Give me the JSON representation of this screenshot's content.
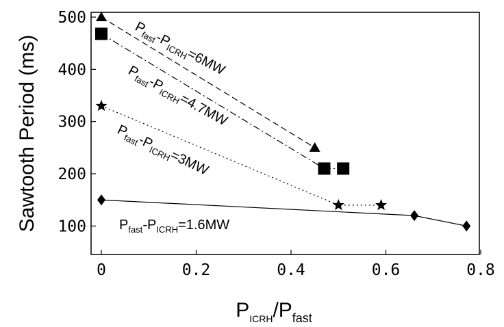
{
  "chart_data": {
    "type": "scatter",
    "xlabel": {
      "main": "P",
      "sub1": "ICRH",
      "mid": "/P",
      "sub2": "fast"
    },
    "ylabel": "Sawtooth Period (ms)",
    "xlim": [
      0,
      0.8
    ],
    "ylim": [
      60,
      510
    ],
    "x_ticks": [
      "0",
      "0.2",
      "0.4",
      "0.6",
      "0.8"
    ],
    "x_tick_values": [
      0,
      0.2,
      0.4,
      0.6,
      0.8
    ],
    "y_ticks": [
      "100",
      "200",
      "300",
      "400",
      "500"
    ],
    "y_tick_values": [
      100,
      200,
      300,
      400,
      500
    ],
    "grid": false,
    "series": [
      {
        "name": "Pfast-PICRH=6MW",
        "label": {
          "p1": "P",
          "s1": "fast",
          "mid": "-P",
          "s2": "ICRH",
          "tail": "=6MW"
        },
        "marker": "triangle",
        "line": "dashed",
        "x": [
          0,
          0.45
        ],
        "y": [
          500,
          250
        ]
      },
      {
        "name": "Pfast-PICRH=4.7MW",
        "label": {
          "p1": "P",
          "s1": "fast",
          "mid": "-P",
          "s2": "ICRH",
          "tail": "=4.7MW"
        },
        "marker": "square",
        "line": "dashdot",
        "x": [
          0,
          0.47,
          0.51
        ],
        "y": [
          468,
          210,
          210
        ]
      },
      {
        "name": "Pfast-PICRH=3MW",
        "label": {
          "p1": "P",
          "s1": "fast",
          "mid": "-P",
          "s2": "ICRH",
          "tail": "=3MW"
        },
        "marker": "star",
        "line": "dotted",
        "x": [
          0,
          0.5,
          0.59
        ],
        "y": [
          330,
          140,
          140
        ]
      },
      {
        "name": "Pfast-PICRH=1.6MW",
        "label": {
          "p1": "P",
          "s1": "fast",
          "mid": "-P",
          "s2": "ICRH",
          "tail": "=1.6MW"
        },
        "marker": "diamond",
        "line": "solid",
        "x": [
          0,
          0.66,
          0.77
        ],
        "y": [
          150,
          120,
          100
        ]
      }
    ]
  }
}
